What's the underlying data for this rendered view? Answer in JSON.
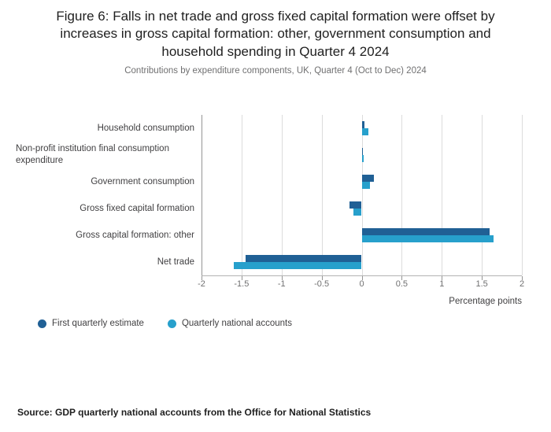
{
  "figure": {
    "title": "Figure 6: Falls in net trade and gross fixed capital formation were offset by increases in gross capital formation: other, government consumption and household spending in Quarter 4 2024",
    "subtitle": "Contributions by expenditure components, UK, Quarter 4 (Oct to Dec) 2024",
    "source": "Source: GDP quarterly national accounts from the Office for National Statistics"
  },
  "legend": [
    {
      "label": "First quarterly estimate",
      "color": "#206095"
    },
    {
      "label": "Quarterly national accounts",
      "color": "#27A0CC"
    }
  ],
  "chart_data": {
    "type": "bar",
    "orientation": "horizontal",
    "title": "Figure 6: Falls in net trade and gross fixed capital formation were offset by increases in gross capital formation: other, government consumption and household spending in Quarter 4 2024",
    "subtitle": "Contributions by expenditure components, UK, Quarter 4 (Oct to Dec) 2024",
    "categories": [
      "Household consumption",
      "Non-profit institution final consumption expenditure",
      "Government consumption",
      "Gross fixed capital formation",
      "Gross capital formation: other",
      "Net trade"
    ],
    "series": [
      {
        "name": "First quarterly estimate",
        "color": "#206095",
        "values": [
          0.03,
          0.01,
          0.15,
          -0.15,
          1.6,
          -1.45
        ]
      },
      {
        "name": "Quarterly national accounts",
        "color": "#27A0CC",
        "values": [
          0.08,
          0.02,
          0.1,
          -0.1,
          1.65,
          -1.6
        ]
      }
    ],
    "xlim": [
      -2,
      2
    ],
    "xticks": [
      -2,
      -1.5,
      -1,
      -0.5,
      0,
      0.5,
      1,
      1.5,
      2
    ],
    "xlabel": "Percentage points",
    "grid": true,
    "legend_position": "bottom"
  }
}
